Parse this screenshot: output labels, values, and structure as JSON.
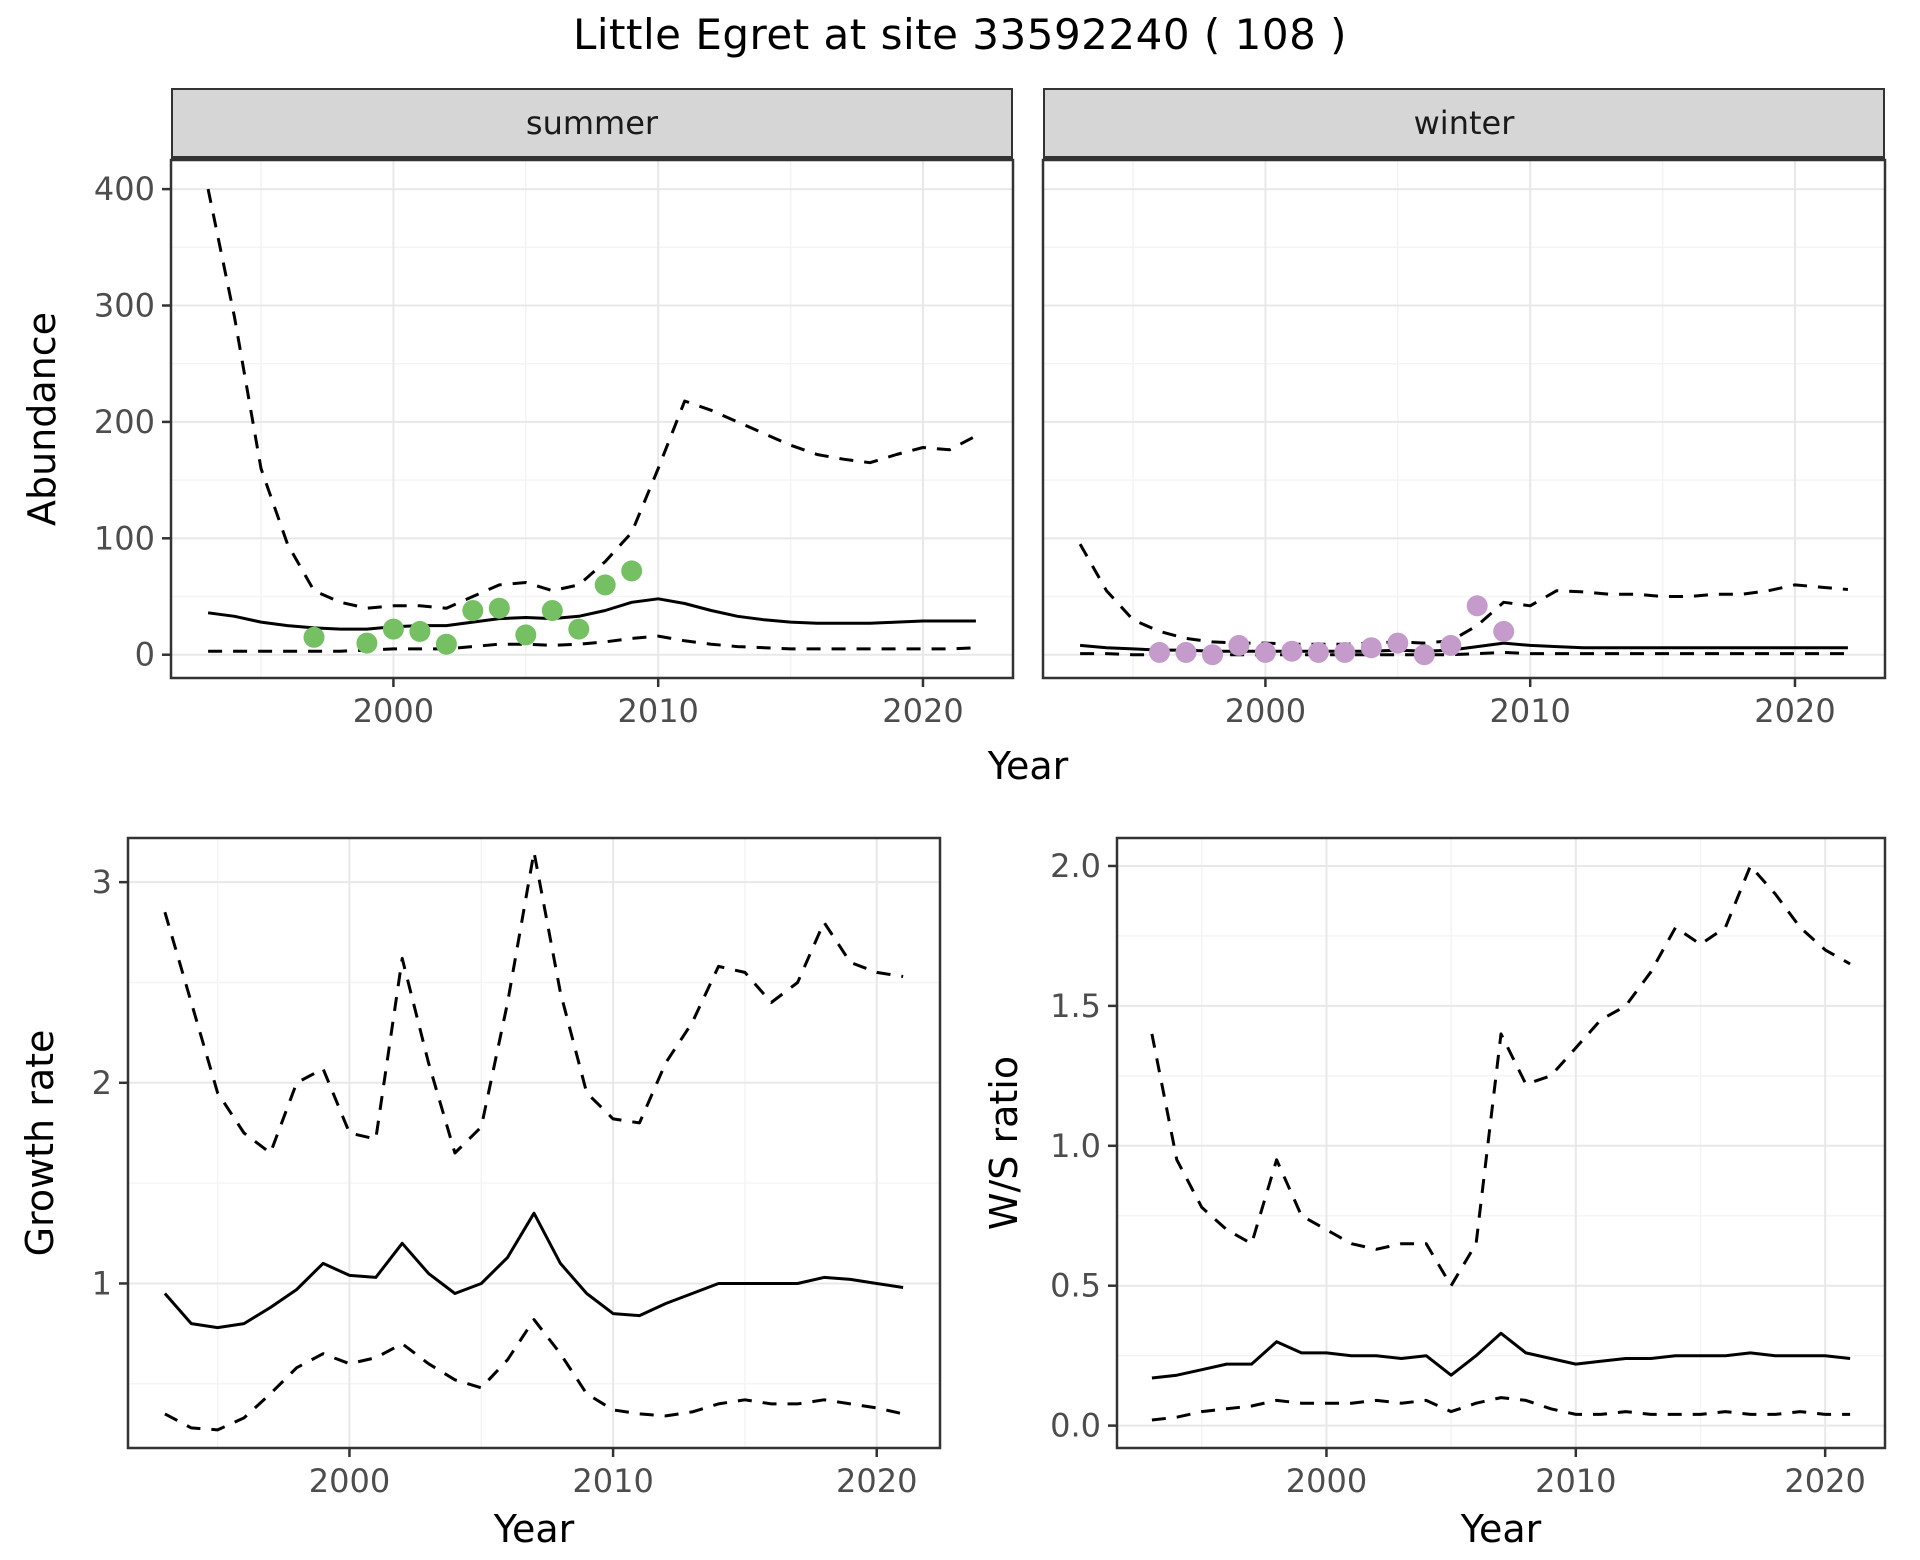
{
  "title": "Little Egret at site 33592240 ( 108 )",
  "colors": {
    "line": "#000000",
    "border": "#333333",
    "grid_major": "#e8e8e8",
    "grid_minor": "#f4f4f4",
    "strip_bg": "#d6d6d6",
    "tick_text": "#4d4d4d"
  },
  "chart_data": [
    {
      "id": "abundance-summer",
      "type": "line",
      "facet": "summer",
      "xlabel": "Year",
      "ylabel": "Abundance",
      "xlim": [
        1991.6,
        2023.4
      ],
      "ylim": [
        -20,
        425
      ],
      "xticks": [
        2000,
        2010,
        2020
      ],
      "xtick_labels": [
        "2000",
        "2010",
        "2020"
      ],
      "yticks": [
        0,
        100,
        200,
        300,
        400
      ],
      "ytick_labels": [
        "0",
        "100",
        "200",
        "300",
        "400"
      ],
      "grid": true,
      "x": [
        1993,
        1994,
        1995,
        1996,
        1997,
        1998,
        1999,
        2000,
        2001,
        2002,
        2003,
        2004,
        2005,
        2006,
        2007,
        2008,
        2009,
        2010,
        2011,
        2012,
        2013,
        2014,
        2015,
        2016,
        2017,
        2018,
        2019,
        2020,
        2021,
        2022
      ],
      "series": [
        {
          "name": "upper-95ci",
          "style": "dashed",
          "values": [
            400,
            290,
            160,
            95,
            55,
            45,
            40,
            42,
            42,
            40,
            50,
            60,
            62,
            55,
            60,
            80,
            105,
            160,
            218,
            210,
            200,
            190,
            180,
            172,
            168,
            165,
            172,
            178,
            176,
            188
          ]
        },
        {
          "name": "median",
          "style": "solid",
          "values": [
            36,
            33,
            28,
            25,
            23,
            22,
            22,
            24,
            25,
            25,
            28,
            31,
            32,
            31,
            33,
            38,
            45,
            48,
            44,
            38,
            33,
            30,
            28,
            27,
            27,
            27,
            28,
            29,
            29,
            29
          ]
        },
        {
          "name": "lower-95ci",
          "style": "dashed",
          "values": [
            3,
            3,
            3,
            3,
            3,
            3,
            4,
            5,
            5,
            5,
            7,
            9,
            9,
            8,
            9,
            11,
            14,
            16,
            12,
            9,
            7,
            6,
            5,
            5,
            5,
            5,
            5,
            5,
            5,
            6
          ]
        }
      ],
      "points": {
        "name": "observed-counts",
        "color": "#76c064",
        "x": [
          1997,
          1999,
          2000,
          2001,
          2002,
          2003,
          2004,
          2005,
          2006,
          2007,
          2008,
          2009
        ],
        "y": [
          15,
          10,
          22,
          20,
          9,
          38,
          40,
          17,
          38,
          22,
          60,
          72
        ]
      }
    },
    {
      "id": "abundance-winter",
      "type": "line",
      "facet": "winter",
      "xlabel": "Year",
      "ylabel": "Abundance",
      "xlim": [
        1991.6,
        2023.4
      ],
      "ylim": [
        -20,
        425
      ],
      "xticks": [
        2000,
        2010,
        2020
      ],
      "xtick_labels": [
        "2000",
        "2010",
        "2020"
      ],
      "yticks": [
        0,
        100,
        200,
        300,
        400
      ],
      "ytick_labels": [
        "0",
        "100",
        "200",
        "300",
        "400"
      ],
      "grid": true,
      "x": [
        1993,
        1994,
        1995,
        1996,
        1997,
        1998,
        1999,
        2000,
        2001,
        2002,
        2003,
        2004,
        2005,
        2006,
        2007,
        2008,
        2009,
        2010,
        2011,
        2012,
        2013,
        2014,
        2015,
        2016,
        2017,
        2018,
        2019,
        2020,
        2021,
        2022
      ],
      "series": [
        {
          "name": "upper-95ci",
          "style": "dashed",
          "values": [
            95,
            55,
            30,
            20,
            14,
            11,
            10,
            10,
            9,
            9,
            9,
            10,
            11,
            10,
            12,
            25,
            45,
            42,
            55,
            54,
            52,
            52,
            50,
            50,
            52,
            52,
            55,
            60,
            58,
            56
          ]
        },
        {
          "name": "median",
          "style": "solid",
          "values": [
            8,
            6,
            5,
            4,
            4,
            3,
            3,
            3,
            3,
            3,
            3,
            3,
            4,
            3,
            4,
            7,
            10,
            8,
            7,
            6,
            6,
            6,
            6,
            6,
            6,
            6,
            6,
            6,
            6,
            6
          ]
        },
        {
          "name": "lower-95ci",
          "style": "dashed",
          "values": [
            1,
            1,
            0,
            0,
            0,
            0,
            0,
            0,
            0,
            0,
            0,
            0,
            0,
            0,
            0,
            1,
            2,
            1,
            1,
            1,
            1,
            1,
            1,
            1,
            1,
            1,
            1,
            1,
            1,
            1
          ]
        }
      ],
      "points": {
        "name": "observed-counts",
        "color": "#c49bcb",
        "x": [
          1996,
          1997,
          1998,
          1999,
          2000,
          2001,
          2002,
          2003,
          2004,
          2005,
          2006,
          2007,
          2008,
          2009
        ],
        "y": [
          2,
          2,
          0,
          8,
          2,
          3,
          2,
          2,
          6,
          10,
          0,
          8,
          42,
          20
        ]
      }
    },
    {
      "id": "growth-rate",
      "type": "line",
      "facet": "",
      "xlabel": "Year",
      "ylabel": "Growth rate",
      "xlim": [
        1991.6,
        2022.4
      ],
      "ylim": [
        0.18,
        3.22
      ],
      "xticks": [
        2000,
        2010,
        2020
      ],
      "xtick_labels": [
        "2000",
        "2010",
        "2020"
      ],
      "yticks": [
        1,
        2,
        3
      ],
      "ytick_labels": [
        "1",
        "2",
        "3"
      ],
      "grid": true,
      "x": [
        1993,
        1994,
        1995,
        1996,
        1997,
        1998,
        1999,
        2000,
        2001,
        2002,
        2003,
        2004,
        2005,
        2006,
        2007,
        2008,
        2009,
        2010,
        2011,
        2012,
        2013,
        2014,
        2015,
        2016,
        2017,
        2018,
        2019,
        2020,
        2021
      ],
      "series": [
        {
          "name": "upper-95ci",
          "style": "dashed",
          "values": [
            2.85,
            2.4,
            1.95,
            1.75,
            1.65,
            2.0,
            2.07,
            1.75,
            1.72,
            2.62,
            2.1,
            1.65,
            1.78,
            2.4,
            3.15,
            2.45,
            1.95,
            1.82,
            1.8,
            2.1,
            2.3,
            2.58,
            2.55,
            2.4,
            2.5,
            2.8,
            2.6,
            2.55,
            2.53
          ]
        },
        {
          "name": "median",
          "style": "solid",
          "values": [
            0.95,
            0.8,
            0.78,
            0.8,
            0.88,
            0.97,
            1.1,
            1.04,
            1.03,
            1.2,
            1.05,
            0.95,
            1.0,
            1.13,
            1.35,
            1.1,
            0.95,
            0.85,
            0.84,
            0.9,
            0.95,
            1.0,
            1.0,
            1.0,
            1.0,
            1.03,
            1.02,
            1.0,
            0.98
          ]
        },
        {
          "name": "lower-95ci",
          "style": "dashed",
          "values": [
            0.35,
            0.28,
            0.27,
            0.33,
            0.45,
            0.58,
            0.65,
            0.6,
            0.63,
            0.7,
            0.6,
            0.52,
            0.48,
            0.62,
            0.82,
            0.65,
            0.45,
            0.37,
            0.35,
            0.34,
            0.36,
            0.4,
            0.42,
            0.4,
            0.4,
            0.42,
            0.4,
            0.38,
            0.35
          ]
        }
      ],
      "points": null
    },
    {
      "id": "ws-ratio",
      "type": "line",
      "facet": "",
      "xlabel": "Year",
      "ylabel": "W/S ratio",
      "xlim": [
        1991.6,
        2022.4
      ],
      "ylim": [
        -0.08,
        2.1
      ],
      "xticks": [
        2000,
        2010,
        2020
      ],
      "xtick_labels": [
        "2000",
        "2010",
        "2020"
      ],
      "yticks": [
        0.0,
        0.5,
        1.0,
        1.5,
        2.0
      ],
      "ytick_labels": [
        "0.0",
        "0.5",
        "1.0",
        "1.5",
        "2.0"
      ],
      "grid": true,
      "x": [
        1993,
        1994,
        1995,
        1996,
        1997,
        1998,
        1999,
        2000,
        2001,
        2002,
        2003,
        2004,
        2005,
        2006,
        2007,
        2008,
        2009,
        2010,
        2011,
        2012,
        2013,
        2014,
        2015,
        2016,
        2017,
        2018,
        2019,
        2020,
        2021
      ],
      "series": [
        {
          "name": "upper-95ci",
          "style": "dashed",
          "values": [
            1.4,
            0.95,
            0.78,
            0.7,
            0.65,
            0.95,
            0.75,
            0.7,
            0.65,
            0.63,
            0.65,
            0.65,
            0.5,
            0.65,
            1.4,
            1.22,
            1.25,
            1.35,
            1.45,
            1.5,
            1.62,
            1.78,
            1.72,
            1.78,
            2.0,
            1.9,
            1.78,
            1.7,
            1.65
          ]
        },
        {
          "name": "median",
          "style": "solid",
          "values": [
            0.17,
            0.18,
            0.2,
            0.22,
            0.22,
            0.3,
            0.26,
            0.26,
            0.25,
            0.25,
            0.24,
            0.25,
            0.18,
            0.25,
            0.33,
            0.26,
            0.24,
            0.22,
            0.23,
            0.24,
            0.24,
            0.25,
            0.25,
            0.25,
            0.26,
            0.25,
            0.25,
            0.25,
            0.24
          ]
        },
        {
          "name": "lower-95ci",
          "style": "dashed",
          "values": [
            0.02,
            0.03,
            0.05,
            0.06,
            0.07,
            0.09,
            0.08,
            0.08,
            0.08,
            0.09,
            0.08,
            0.09,
            0.05,
            0.08,
            0.1,
            0.09,
            0.06,
            0.04,
            0.04,
            0.05,
            0.04,
            0.04,
            0.04,
            0.05,
            0.04,
            0.04,
            0.05,
            0.04,
            0.04
          ]
        }
      ],
      "points": null
    }
  ]
}
